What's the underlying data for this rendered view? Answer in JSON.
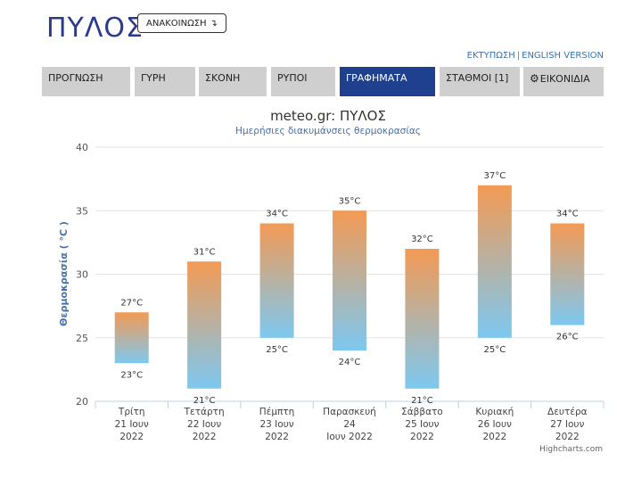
{
  "header": {
    "title": "ΠΥΛΟΣ",
    "announce_label": "ΑΝΑΚΟΙΝΩΣΗ",
    "announce_arrow": "↴",
    "print_link": "ΕΚΤΥΠΩΣΗ",
    "link_separator": "|",
    "english_link": "ENGLISH VERSION"
  },
  "nav": {
    "tabs": [
      {
        "label": "ΠΡΟΓΝΩΣΗ"
      },
      {
        "label": "ΓΥΡΗ"
      },
      {
        "label": "ΣΚΟΝΗ"
      },
      {
        "label": "ΡΥΠΟΙ"
      },
      {
        "label": "ΓΡΑΦΗΜΑΤΑ",
        "active": true
      },
      {
        "label": "ΣΤΑΘΜΟΙ [1]"
      },
      {
        "label": "ΕΙΚΟΝΙΔΙΑ",
        "icon": "gear-icon"
      }
    ]
  },
  "colors": {
    "brand": "#2a3a8c",
    "active_tab": "#1f3f8f",
    "bar_top": "#f39a54",
    "bar_bottom": "#7dc8f0"
  },
  "chart_data": {
    "type": "columnrange",
    "title": "meteo.gr: ΠΥΛΟΣ",
    "subtitle": "Ημερήσιες διακυμάνσεις θερμοκρασίας",
    "ylabel": "Θερμοκρασία ( °C )",
    "ylim": [
      20,
      40
    ],
    "yticks": [
      "20",
      "25",
      "30",
      "35",
      "40"
    ],
    "credit": "Highcharts.com",
    "categories": [
      [
        "Τρίτη",
        "21 Ιουν",
        "2022"
      ],
      [
        "Τετάρτη",
        "22 Ιουν",
        "2022"
      ],
      [
        "Πέμπτη",
        "23 Ιουν",
        "2022"
      ],
      [
        "Παρασκευή",
        "24",
        "Ιουν 2022"
      ],
      [
        "Σάββατο",
        "25 Ιουν",
        "2022"
      ],
      [
        "Κυριακή",
        "26 Ιουν",
        "2022"
      ],
      [
        "Δευτέρα",
        "27 Ιουν",
        "2022"
      ]
    ],
    "low": [
      23,
      21,
      25,
      24,
      21,
      25,
      26
    ],
    "high": [
      27,
      31,
      34,
      35,
      32,
      37,
      34
    ],
    "low_labels": [
      "23°C",
      "21°C",
      "25°C",
      "24°C",
      "21°C",
      "25°C",
      "26°C"
    ],
    "high_labels": [
      "27°C",
      "31°C",
      "34°C",
      "35°C",
      "32°C",
      "37°C",
      "34°C"
    ]
  }
}
